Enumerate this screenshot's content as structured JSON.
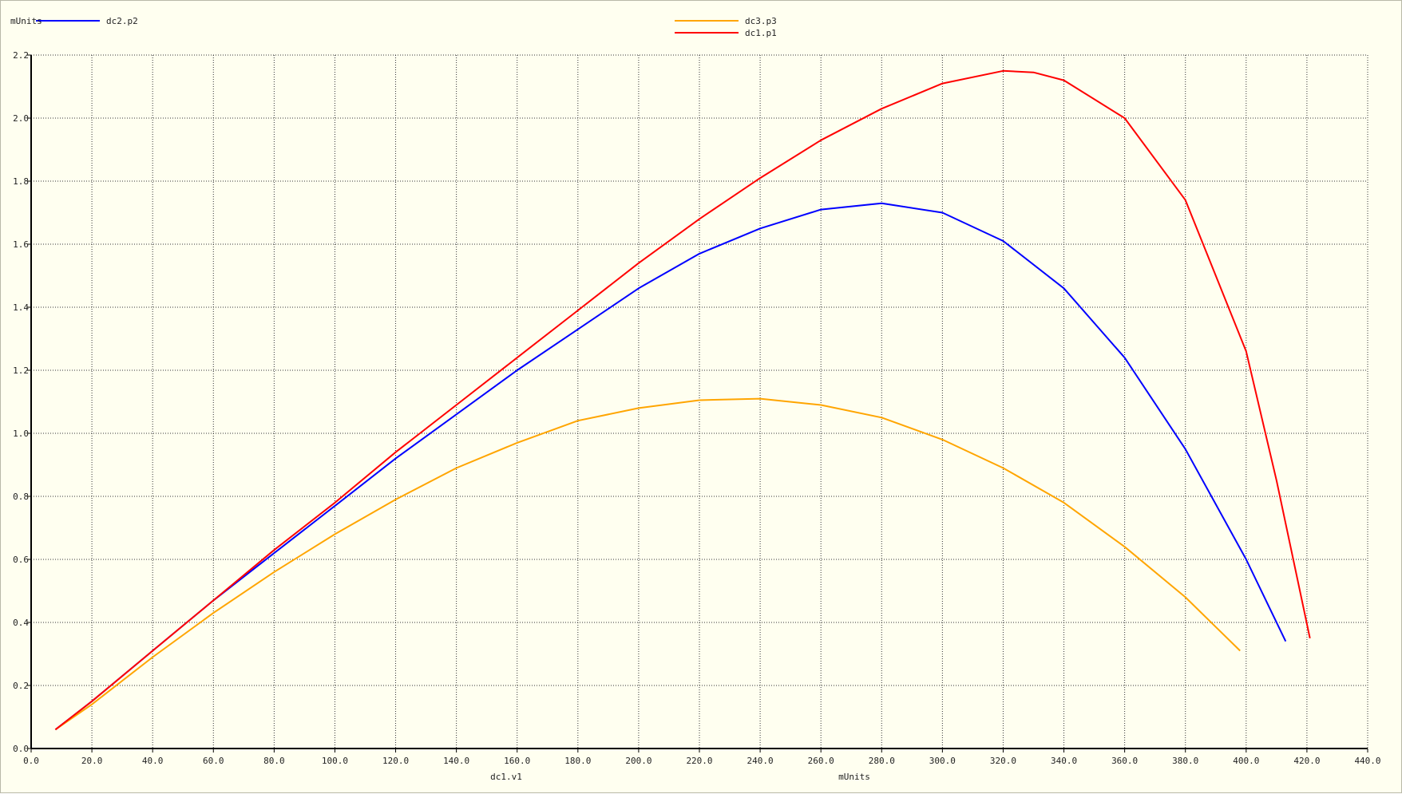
{
  "chart_data": {
    "type": "line",
    "xlabel": "dc1.v1",
    "xunit": "mUnits",
    "yunit": "mUnits",
    "xlim": [
      0,
      440
    ],
    "ylim": [
      0,
      2.2
    ],
    "xticks": [
      0,
      20,
      40,
      60,
      80,
      100,
      120,
      140,
      160,
      180,
      200,
      220,
      240,
      260,
      280,
      300,
      320,
      340,
      360,
      380,
      400,
      420,
      440
    ],
    "yticks": [
      0,
      0.2,
      0.4,
      0.6,
      0.8,
      1.0,
      1.2,
      1.4,
      1.6,
      1.8,
      2.0,
      2.2
    ],
    "grid": true,
    "series": [
      {
        "name": "dc2.p2",
        "color": "#0000ff",
        "legend_position": "top-left",
        "x": [
          8,
          20,
          40,
          60,
          80,
          100,
          120,
          140,
          160,
          180,
          200,
          220,
          240,
          260,
          280,
          300,
          320,
          340,
          360,
          380,
          400,
          413
        ],
        "y": [
          0.06,
          0.15,
          0.31,
          0.47,
          0.62,
          0.77,
          0.92,
          1.06,
          1.2,
          1.33,
          1.46,
          1.57,
          1.65,
          1.71,
          1.73,
          1.7,
          1.61,
          1.46,
          1.24,
          0.95,
          0.6,
          0.34
        ]
      },
      {
        "name": "dc3.p3",
        "color": "#ffa500",
        "legend_position": "top-center",
        "x": [
          8,
          20,
          40,
          60,
          80,
          100,
          120,
          140,
          160,
          180,
          200,
          220,
          240,
          260,
          280,
          300,
          320,
          340,
          360,
          380,
          398
        ],
        "y": [
          0.06,
          0.14,
          0.29,
          0.43,
          0.56,
          0.68,
          0.79,
          0.89,
          0.97,
          1.04,
          1.08,
          1.105,
          1.11,
          1.09,
          1.05,
          0.98,
          0.89,
          0.78,
          0.64,
          0.48,
          0.31
        ]
      },
      {
        "name": "dc1.p1",
        "color": "#ff0000",
        "legend_position": "top-center",
        "x": [
          8,
          20,
          40,
          60,
          80,
          100,
          120,
          140,
          160,
          180,
          200,
          220,
          240,
          260,
          280,
          300,
          320,
          330,
          340,
          360,
          380,
          400,
          410,
          421
        ],
        "y": [
          0.06,
          0.15,
          0.31,
          0.47,
          0.63,
          0.78,
          0.94,
          1.09,
          1.24,
          1.39,
          1.54,
          1.68,
          1.81,
          1.93,
          2.03,
          2.11,
          2.15,
          2.145,
          2.12,
          2.0,
          1.74,
          1.26,
          0.85,
          0.35
        ]
      }
    ]
  }
}
